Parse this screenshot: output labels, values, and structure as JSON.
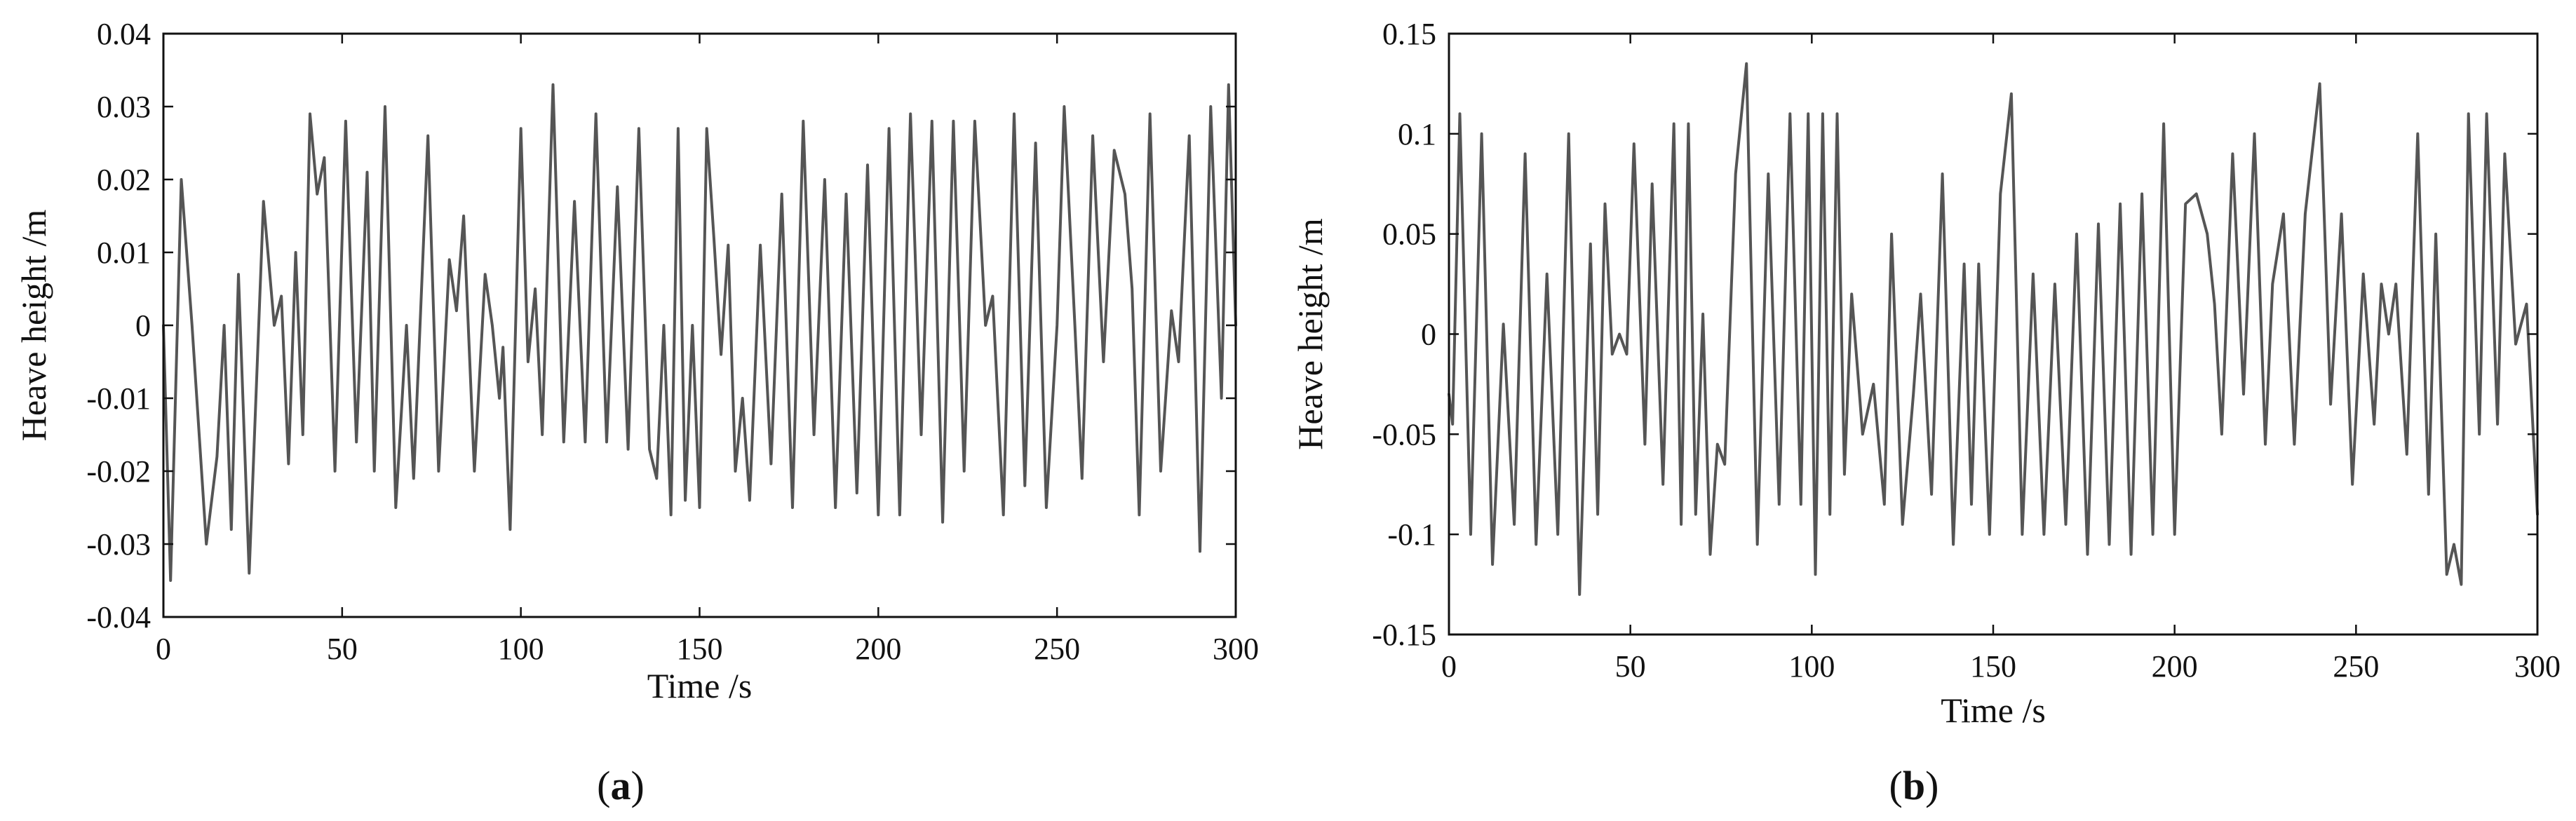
{
  "chart_data": [
    {
      "type": "line",
      "panel_label": "a",
      "xlabel": "Time /s",
      "ylabel": "Heave height /m",
      "xlim": [
        0,
        300
      ],
      "ylim": [
        -0.04,
        0.04
      ],
      "x_ticks": [
        "0",
        "50",
        "100",
        "150",
        "200",
        "250",
        "300"
      ],
      "y_ticks": [
        "-0.04",
        "-0.03",
        "-0.02",
        "-0.01",
        "0",
        "0.01",
        "0.02",
        "0.03",
        "0.04"
      ],
      "grid": false,
      "series": [
        {
          "color": "#555555",
          "points": [
            [
              0,
              0.0
            ],
            [
              2,
              -0.035
            ],
            [
              5,
              0.02
            ],
            [
              8,
              0.0
            ],
            [
              12,
              -0.03
            ],
            [
              15,
              -0.018
            ],
            [
              17,
              0.0
            ],
            [
              19,
              -0.028
            ],
            [
              21,
              0.007
            ],
            [
              24,
              -0.034
            ],
            [
              28,
              0.017
            ],
            [
              31,
              0.0
            ],
            [
              33,
              0.004
            ],
            [
              35,
              -0.019
            ],
            [
              37,
              0.01
            ],
            [
              39,
              -0.015
            ],
            [
              41,
              0.029
            ],
            [
              43,
              0.018
            ],
            [
              45,
              0.023
            ],
            [
              48,
              -0.02
            ],
            [
              51,
              0.028
            ],
            [
              54,
              -0.016
            ],
            [
              57,
              0.021
            ],
            [
              59,
              -0.02
            ],
            [
              62,
              0.03
            ],
            [
              65,
              -0.025
            ],
            [
              68,
              0.0
            ],
            [
              70,
              -0.021
            ],
            [
              74,
              0.026
            ],
            [
              77,
              -0.02
            ],
            [
              80,
              0.009
            ],
            [
              82,
              0.002
            ],
            [
              84,
              0.015
            ],
            [
              87,
              -0.02
            ],
            [
              90,
              0.007
            ],
            [
              92,
              0.0
            ],
            [
              94,
              -0.01
            ],
            [
              95,
              -0.003
            ],
            [
              97,
              -0.028
            ],
            [
              100,
              0.027
            ],
            [
              102,
              -0.005
            ],
            [
              104,
              0.005
            ],
            [
              106,
              -0.015
            ],
            [
              109,
              0.033
            ],
            [
              112,
              -0.016
            ],
            [
              115,
              0.017
            ],
            [
              118,
              -0.016
            ],
            [
              121,
              0.029
            ],
            [
              124,
              -0.016
            ],
            [
              127,
              0.019
            ],
            [
              130,
              -0.017
            ],
            [
              133,
              0.027
            ],
            [
              136,
              -0.017
            ],
            [
              138,
              -0.021
            ],
            [
              140,
              0.0
            ],
            [
              142,
              -0.026
            ],
            [
              144,
              0.027
            ],
            [
              146,
              -0.024
            ],
            [
              148,
              0.0
            ],
            [
              150,
              -0.025
            ],
            [
              152,
              0.027
            ],
            [
              154,
              0.012
            ],
            [
              156,
              -0.004
            ],
            [
              158,
              0.011
            ],
            [
              160,
              -0.02
            ],
            [
              162,
              -0.01
            ],
            [
              164,
              -0.024
            ],
            [
              167,
              0.011
            ],
            [
              170,
              -0.019
            ],
            [
              173,
              0.018
            ],
            [
              176,
              -0.025
            ],
            [
              179,
              0.028
            ],
            [
              182,
              -0.015
            ],
            [
              185,
              0.02
            ],
            [
              188,
              -0.025
            ],
            [
              191,
              0.018
            ],
            [
              194,
              -0.023
            ],
            [
              197,
              0.022
            ],
            [
              200,
              -0.026
            ],
            [
              203,
              0.027
            ],
            [
              206,
              -0.026
            ],
            [
              209,
              0.029
            ],
            [
              212,
              -0.015
            ],
            [
              215,
              0.028
            ],
            [
              218,
              -0.027
            ],
            [
              221,
              0.028
            ],
            [
              224,
              -0.02
            ],
            [
              227,
              0.028
            ],
            [
              230,
              0.0
            ],
            [
              232,
              0.004
            ],
            [
              235,
              -0.026
            ],
            [
              238,
              0.029
            ],
            [
              241,
              -0.022
            ],
            [
              244,
              0.025
            ],
            [
              247,
              -0.025
            ],
            [
              250,
              0.0
            ],
            [
              252,
              0.03
            ],
            [
              255,
              0.0
            ],
            [
              257,
              -0.021
            ],
            [
              260,
              0.026
            ],
            [
              263,
              -0.005
            ],
            [
              266,
              0.024
            ],
            [
              269,
              0.018
            ],
            [
              271,
              0.005
            ],
            [
              273,
              -0.026
            ],
            [
              276,
              0.029
            ],
            [
              279,
              -0.02
            ],
            [
              282,
              0.002
            ],
            [
              284,
              -0.005
            ],
            [
              287,
              0.026
            ],
            [
              290,
              -0.031
            ],
            [
              293,
              0.03
            ],
            [
              296,
              -0.01
            ],
            [
              298,
              0.033
            ],
            [
              300,
              0.0
            ]
          ]
        }
      ]
    },
    {
      "type": "line",
      "panel_label": "b",
      "xlabel": "Time /s",
      "ylabel": "Heave height /m",
      "xlim": [
        0,
        300
      ],
      "ylim": [
        -0.15,
        0.15
      ],
      "x_ticks": [
        "0",
        "50",
        "100",
        "150",
        "200",
        "250",
        "300"
      ],
      "y_ticks": [
        "-0.15",
        "-0.1",
        "-0.05",
        "0",
        "0.05",
        "0.1",
        "0.15"
      ],
      "grid": false,
      "series": [
        {
          "color": "#555555",
          "points": [
            [
              0,
              -0.03
            ],
            [
              1,
              -0.045
            ],
            [
              3,
              0.11
            ],
            [
              6,
              -0.1
            ],
            [
              9,
              0.1
            ],
            [
              12,
              -0.115
            ],
            [
              15,
              0.005
            ],
            [
              18,
              -0.095
            ],
            [
              21,
              0.09
            ],
            [
              24,
              -0.105
            ],
            [
              27,
              0.03
            ],
            [
              30,
              -0.1
            ],
            [
              33,
              0.1
            ],
            [
              36,
              -0.13
            ],
            [
              39,
              0.045
            ],
            [
              41,
              -0.09
            ],
            [
              43,
              0.065
            ],
            [
              45,
              -0.01
            ],
            [
              47,
              0.0
            ],
            [
              49,
              -0.01
            ],
            [
              51,
              0.095
            ],
            [
              54,
              -0.055
            ],
            [
              56,
              0.075
            ],
            [
              59,
              -0.075
            ],
            [
              62,
              0.105
            ],
            [
              64,
              -0.095
            ],
            [
              66,
              0.105
            ],
            [
              68,
              -0.09
            ],
            [
              70,
              0.01
            ],
            [
              72,
              -0.11
            ],
            [
              74,
              -0.055
            ],
            [
              76,
              -0.065
            ],
            [
              79,
              0.08
            ],
            [
              82,
              0.135
            ],
            [
              85,
              -0.105
            ],
            [
              88,
              0.08
            ],
            [
              91,
              -0.085
            ],
            [
              94,
              0.11
            ],
            [
              97,
              -0.085
            ],
            [
              99,
              0.11
            ],
            [
              101,
              -0.12
            ],
            [
              103,
              0.11
            ],
            [
              105,
              -0.09
            ],
            [
              107,
              0.11
            ],
            [
              109,
              -0.07
            ],
            [
              111,
              0.02
            ],
            [
              114,
              -0.05
            ],
            [
              117,
              -0.025
            ],
            [
              120,
              -0.085
            ],
            [
              122,
              0.05
            ],
            [
              125,
              -0.095
            ],
            [
              128,
              -0.03
            ],
            [
              130,
              0.02
            ],
            [
              133,
              -0.08
            ],
            [
              136,
              0.08
            ],
            [
              139,
              -0.105
            ],
            [
              142,
              0.035
            ],
            [
              144,
              -0.085
            ],
            [
              146,
              0.035
            ],
            [
              149,
              -0.1
            ],
            [
              152,
              0.07
            ],
            [
              155,
              0.12
            ],
            [
              158,
              -0.1
            ],
            [
              161,
              0.03
            ],
            [
              164,
              -0.1
            ],
            [
              167,
              0.025
            ],
            [
              170,
              -0.095
            ],
            [
              173,
              0.05
            ],
            [
              176,
              -0.11
            ],
            [
              179,
              0.055
            ],
            [
              182,
              -0.105
            ],
            [
              185,
              0.065
            ],
            [
              188,
              -0.11
            ],
            [
              191,
              0.07
            ],
            [
              194,
              -0.1
            ],
            [
              197,
              0.105
            ],
            [
              200,
              -0.1
            ],
            [
              203,
              0.065
            ],
            [
              206,
              0.07
            ],
            [
              209,
              0.05
            ],
            [
              211,
              0.015
            ],
            [
              213,
              -0.05
            ],
            [
              216,
              0.09
            ],
            [
              219,
              -0.03
            ],
            [
              222,
              0.1
            ],
            [
              225,
              -0.055
            ],
            [
              227,
              0.025
            ],
            [
              230,
              0.06
            ],
            [
              233,
              -0.055
            ],
            [
              236,
              0.06
            ],
            [
              240,
              0.125
            ],
            [
              243,
              -0.035
            ],
            [
              246,
              0.06
            ],
            [
              249,
              -0.075
            ],
            [
              252,
              0.03
            ],
            [
              255,
              -0.045
            ],
            [
              257,
              0.025
            ],
            [
              259,
              0.0
            ],
            [
              261,
              0.025
            ],
            [
              264,
              -0.06
            ],
            [
              267,
              0.1
            ],
            [
              270,
              -0.08
            ],
            [
              272,
              0.05
            ],
            [
              275,
              -0.12
            ],
            [
              277,
              -0.105
            ],
            [
              279,
              -0.125
            ],
            [
              281,
              0.11
            ],
            [
              284,
              -0.05
            ],
            [
              286,
              0.11
            ],
            [
              289,
              -0.045
            ],
            [
              291,
              0.09
            ],
            [
              294,
              -0.005
            ],
            [
              297,
              0.015
            ],
            [
              300,
              -0.09
            ]
          ]
        }
      ]
    }
  ]
}
